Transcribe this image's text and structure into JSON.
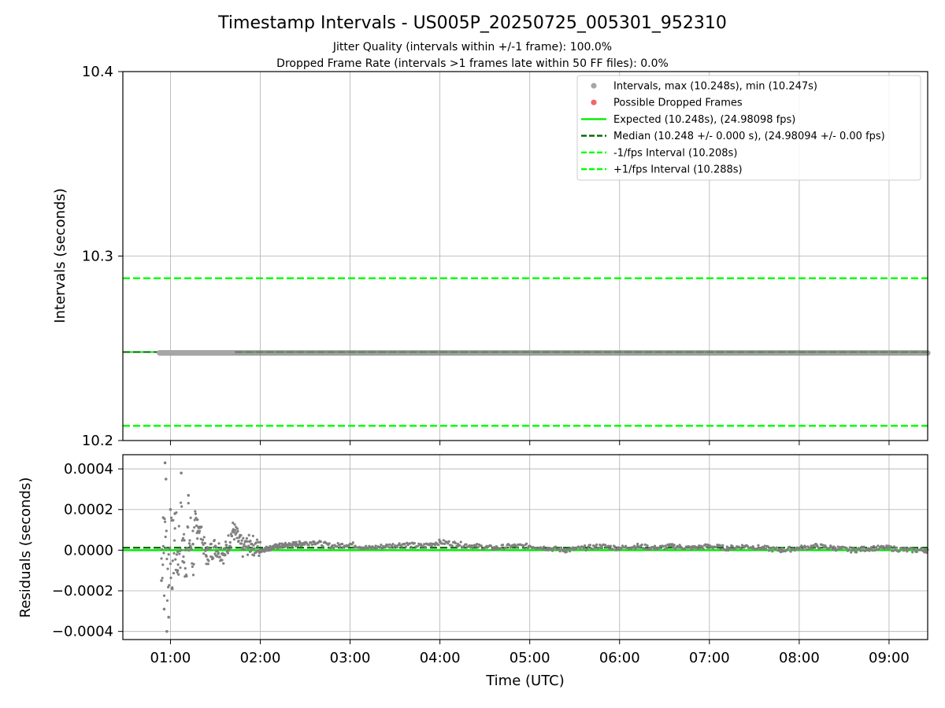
{
  "figure": {
    "title": "Timestamp Intervals - US005P_20250725_005301_952310",
    "subtitle_1": "Jitter Quality (intervals within +/-1 frame): 100.0%",
    "subtitle_2": "Dropped Frame Rate (intervals >1 frames late within 50 FF files): 0.0%"
  },
  "chart_data": [
    {
      "type": "scatter",
      "panel": "intervals",
      "ylabel": "Intervals (seconds)",
      "xlabel": "",
      "xlim_hours": [
        0.47,
        9.43
      ],
      "ylim": [
        10.2,
        10.4
      ],
      "yticks": [
        10.2,
        10.3,
        10.4
      ],
      "ytick_labels": [
        "10.2",
        "10.3",
        "10.4"
      ],
      "grid": true,
      "legend_position": "upper-right",
      "legend": [
        {
          "label": "Intervals, max (10.248s), min (10.247s)",
          "marker": "circle",
          "color": "#a6a6a6"
        },
        {
          "label": "Possible Dropped Frames",
          "marker": "circle",
          "color": "#f0666c"
        },
        {
          "label": "Expected (10.248s), (24.98098 fps)",
          "line": "solid",
          "color": "#00ee00"
        },
        {
          "label": "Median (10.248 +/- 0.000 s), (24.98094 +/- 0.00 fps)",
          "line": "dashed",
          "color": "#006400"
        },
        {
          "label": "-1/fps Interval (10.208s)",
          "line": "dashed",
          "color": "#00ff00"
        },
        {
          "label": "+1/fps Interval (10.288s)",
          "line": "dashed",
          "color": "#00ff00"
        }
      ],
      "reference_lines": {
        "expected": 10.248,
        "median": 10.248,
        "minus_one_frame": 10.208,
        "plus_one_frame": 10.288
      },
      "series": [
        {
          "name": "Intervals",
          "x_range_hours": [
            0.88,
            9.43
          ],
          "y_min": 10.247,
          "y_max": 10.248,
          "color": "#808080"
        },
        {
          "name": "Possible Dropped Frames",
          "count": 0,
          "color": "#f0666c"
        }
      ]
    },
    {
      "type": "scatter",
      "panel": "residuals",
      "ylabel": "Residuals (seconds)",
      "xlabel": "Time (UTC)",
      "xlim_hours": [
        0.47,
        9.43
      ],
      "ylim": [
        -0.00044,
        0.00047
      ],
      "yticks": [
        -0.0004,
        -0.0002,
        0.0,
        0.0002,
        0.0004
      ],
      "ytick_labels": [
        "−0.0004",
        "−0.0002",
        "0.0000",
        "0.0002",
        "0.0004"
      ],
      "xticks_hours": [
        1,
        2,
        3,
        4,
        5,
        6,
        7,
        8,
        9
      ],
      "xtick_labels": [
        "01:00",
        "02:00",
        "03:00",
        "04:00",
        "05:00",
        "06:00",
        "07:00",
        "08:00",
        "09:00"
      ],
      "grid": true,
      "reference_lines": {
        "expected_residual": 0.0,
        "median_residual": 1.2e-05
      },
      "series": [
        {
          "name": "Residuals",
          "color": "#808080",
          "x": [
            0.9,
            0.92,
            0.93,
            0.94,
            0.95,
            0.96,
            0.98,
            1.0,
            1.02,
            1.05,
            1.08,
            1.12,
            1.15,
            1.2,
            1.25,
            1.3,
            1.4,
            1.5,
            1.6,
            1.7,
            1.8,
            1.9,
            2.0,
            2.2,
            2.4,
            2.6,
            2.8,
            3.0,
            3.2,
            3.4,
            3.6,
            3.8,
            4.0,
            4.2,
            4.4,
            4.6,
            4.8,
            5.0,
            5.2,
            5.4,
            5.6,
            5.8,
            6.0,
            6.2,
            6.4,
            6.6,
            6.8,
            7.0,
            7.2,
            7.4,
            7.6,
            7.8,
            8.0,
            8.2,
            8.4,
            8.6,
            8.8,
            9.0,
            9.2,
            9.4
          ],
          "y": [
            -0.00015,
            0.00016,
            -0.00029,
            0.00043,
            0.00035,
            -0.0004,
            -0.00033,
            0.0002,
            -0.00019,
            0.00018,
            -0.0001,
            0.00038,
            -6e-05,
            0.00027,
            3e-05,
            0.00015,
            -3e-05,
            2e-05,
            -2e-05,
            0.0001,
            1e-05,
            3e-05,
            0.0,
            2e-05,
            3e-05,
            4e-05,
            2e-05,
            3e-05,
            1e-05,
            2e-05,
            3e-05,
            2e-05,
            4e-05,
            3e-05,
            2e-05,
            1e-05,
            2e-05,
            2e-05,
            1e-05,
            0.0,
            1e-05,
            2e-05,
            1e-05,
            2e-05,
            1e-05,
            2e-05,
            1e-05,
            2e-05,
            1e-05,
            2e-05,
            1e-05,
            0.0,
            1e-05,
            2e-05,
            1e-05,
            0.0,
            1e-05,
            1e-05,
            0.0,
            0.0
          ]
        }
      ]
    }
  ]
}
